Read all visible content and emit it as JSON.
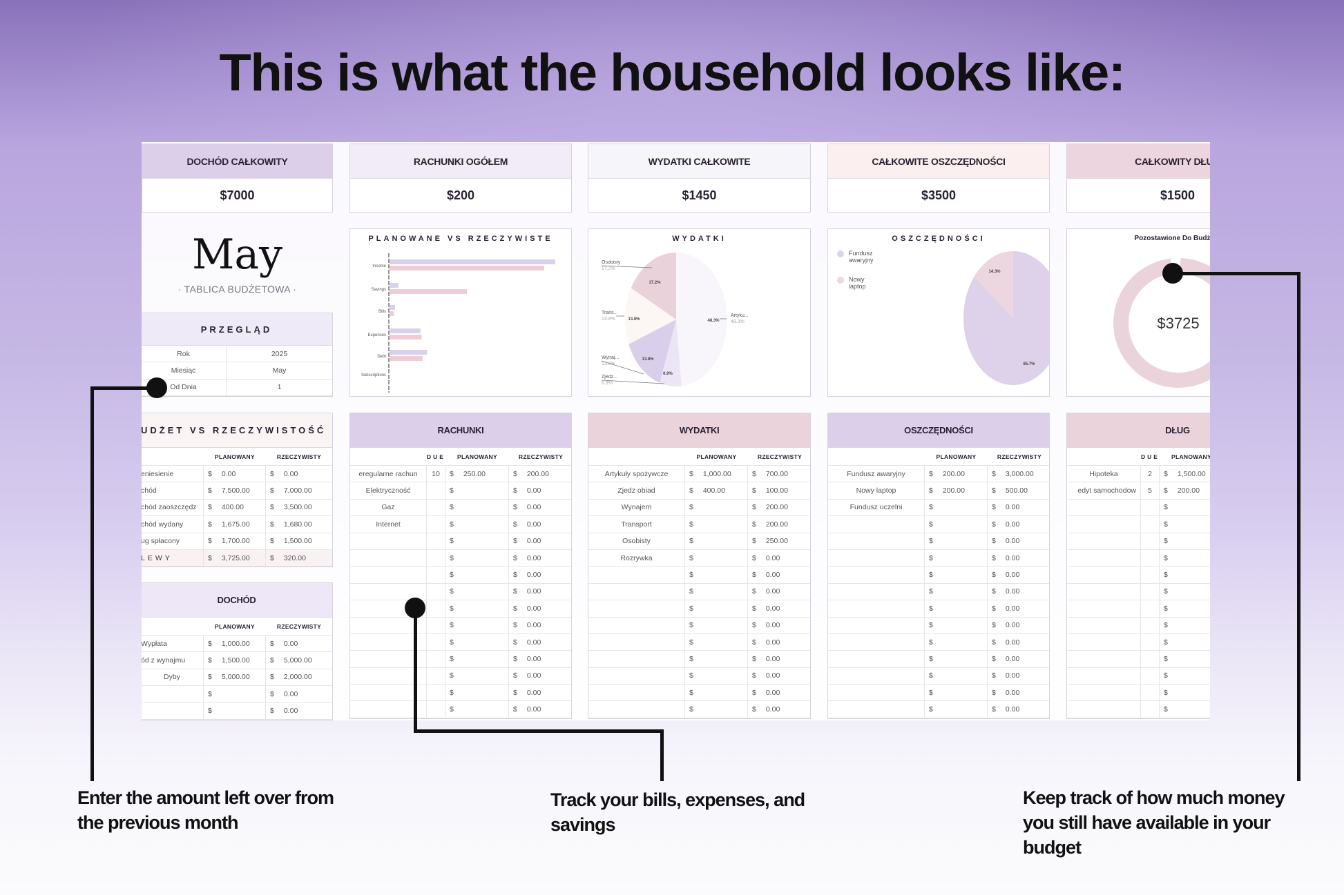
{
  "title": "This is what the household looks like:",
  "currency": "$",
  "cards": [
    {
      "label": "DOCHÓD CAŁKOWITY",
      "value": "$7000",
      "color": "#dccfea"
    },
    {
      "label": "RACHUNKI OGÓŁEM",
      "value": "$200",
      "color": "#f1ecf8"
    },
    {
      "label": "WYDATKI CAŁKOWITE",
      "value": "$1450",
      "color": "#f6f5fa"
    },
    {
      "label": "CAŁKOWITE OSZCZĘDNOŚCI",
      "value": "$3500",
      "color": "#fbeff0"
    },
    {
      "label": "CAŁKOWITY DŁUG",
      "value": "$1500",
      "color": "#ecd5de"
    }
  ],
  "month": {
    "name": "May",
    "subtitle": "· TABLICA BUDŻETOWA ·"
  },
  "overview": {
    "title": "PRZEGLĄD",
    "rows": [
      [
        "Rok",
        "2025"
      ],
      [
        "Miesiąc",
        "May"
      ],
      [
        "Od Dnia",
        "1"
      ]
    ]
  },
  "budget_vs_actual": {
    "title": "UDŻET VS RZECZYWISTOŚĆ",
    "columns": [
      "",
      "PLANOWANY",
      "RZECZYWISTY"
    ],
    "rows": [
      [
        "eniesienie",
        "0.00",
        "0.00"
      ],
      [
        "chód",
        "7,500.00",
        "7,000.00"
      ],
      [
        "chód zaoszczędz",
        "400.00",
        "3,500.00"
      ],
      [
        "chód wydany",
        "1,675.00",
        "1,680.00"
      ],
      [
        "ug spłacony",
        "1,700.00",
        "1,500.00"
      ],
      [
        "LEWY",
        "3,725.00",
        "320.00"
      ]
    ]
  },
  "income": {
    "title": "DOCHÓD",
    "columns": [
      "",
      "PLANOWANY",
      "RZECZYWISTY"
    ],
    "rows": [
      [
        "Wypłata",
        "1,000.00",
        "0.00"
      ],
      [
        "ód z wynajmu",
        "1,500.00",
        "5,000.00"
      ],
      [
        "Dyby",
        "5,000.00",
        "2,000.00"
      ],
      [
        "",
        "",
        "0.00"
      ],
      [
        "",
        "",
        "0.00"
      ]
    ]
  },
  "bills": {
    "title": "RACHUNKI",
    "columns": [
      "",
      "DUE",
      "PLANOWANY",
      "RZECZYWISTY"
    ],
    "rows": [
      [
        "eregularne rachun",
        "10",
        "250.00",
        "200.00"
      ],
      [
        "Elektryczność",
        "",
        "",
        "0.00"
      ],
      [
        "Gaz",
        "",
        "",
        "0.00"
      ],
      [
        "Internet",
        "",
        "",
        "0.00"
      ],
      [
        "",
        "",
        "",
        "0.00"
      ],
      [
        "",
        "",
        "",
        "0.00"
      ],
      [
        "",
        "",
        "",
        "0.00"
      ],
      [
        "",
        "",
        "",
        "0.00"
      ],
      [
        "",
        "",
        "",
        "0.00"
      ],
      [
        "",
        "",
        "",
        "0.00"
      ],
      [
        "",
        "",
        "",
        "0.00"
      ],
      [
        "",
        "",
        "",
        "0.00"
      ],
      [
        "",
        "",
        "",
        "0.00"
      ],
      [
        "",
        "",
        "",
        "0.00"
      ],
      [
        "",
        "",
        "",
        "0.00"
      ]
    ]
  },
  "expenses": {
    "title": "WYDATKI",
    "columns": [
      "",
      "PLANOWANY",
      "RZECZYWISTY"
    ],
    "rows": [
      [
        "Artykuły spożywcze",
        "1,000.00",
        "700.00"
      ],
      [
        "Zjedz obiad",
        "400.00",
        "100.00"
      ],
      [
        "Wynajem",
        "",
        "200.00"
      ],
      [
        "Transport",
        "",
        "200.00"
      ],
      [
        "Osobisty",
        "",
        "250.00"
      ],
      [
        "Rozrywka",
        "",
        "0.00"
      ],
      [
        "",
        "",
        "0.00"
      ],
      [
        "",
        "",
        "0.00"
      ],
      [
        "",
        "",
        "0.00"
      ],
      [
        "",
        "",
        "0.00"
      ],
      [
        "",
        "",
        "0.00"
      ],
      [
        "",
        "",
        "0.00"
      ],
      [
        "",
        "",
        "0.00"
      ],
      [
        "",
        "",
        "0.00"
      ],
      [
        "",
        "",
        "0.00"
      ]
    ]
  },
  "savings": {
    "title": "OSZCZĘDNOŚCI",
    "columns": [
      "",
      "PLANOWANY",
      "RZECZYWISTY"
    ],
    "rows": [
      [
        "Fundusz awaryjny",
        "200.00",
        "3,000.00"
      ],
      [
        "Nowy laptop",
        "200.00",
        "500.00"
      ],
      [
        "Fundusz uczelni",
        "",
        "0.00"
      ],
      [
        "",
        "",
        "0.00"
      ],
      [
        "",
        "",
        "0.00"
      ],
      [
        "",
        "",
        "0.00"
      ],
      [
        "",
        "",
        "0.00"
      ],
      [
        "",
        "",
        "0.00"
      ],
      [
        "",
        "",
        "0.00"
      ],
      [
        "",
        "",
        "0.00"
      ],
      [
        "",
        "",
        "0.00"
      ],
      [
        "",
        "",
        "0.00"
      ],
      [
        "",
        "",
        "0.00"
      ],
      [
        "",
        "",
        "0.00"
      ],
      [
        "",
        "",
        "0.00"
      ]
    ]
  },
  "debt": {
    "title": "DŁUG",
    "columns": [
      "",
      "DUE",
      "PLANOWANY"
    ],
    "rows": [
      [
        "edyt samochodow",
        "5",
        "200.00"
      ]
    ],
    "rows_all": [
      [
        "Hipoteka",
        "2",
        "1,500.00"
      ],
      [
        "edyt samochodow",
        "5",
        "200.00"
      ],
      [
        "",
        "",
        ""
      ],
      [
        "",
        "",
        ""
      ],
      [
        "",
        "",
        ""
      ],
      [
        "",
        "",
        ""
      ],
      [
        "",
        "",
        ""
      ],
      [
        "",
        "",
        ""
      ],
      [
        "",
        "",
        ""
      ],
      [
        "",
        "",
        ""
      ],
      [
        "",
        "",
        ""
      ],
      [
        "",
        "",
        ""
      ],
      [
        "",
        "",
        ""
      ],
      [
        "",
        "",
        ""
      ],
      [
        "",
        "",
        ""
      ]
    ]
  },
  "chart_data": [
    {
      "type": "bar",
      "orientation": "horizontal",
      "title": "PLANOWANE VS RZECZYWISTE",
      "categories": [
        "Income",
        "Savings",
        "Bills",
        "Expenses",
        "Debt",
        "Subscriptions"
      ],
      "series": [
        {
          "values": [
            7500,
            400,
            250,
            1400,
            1700,
            0
          ],
          "color": "#d9d0ec"
        },
        {
          "values": [
            7000,
            3500,
            200,
            1450,
            1500,
            0
          ],
          "color": "#efcdd6"
        }
      ],
      "xlim": [
        0,
        7600
      ]
    },
    {
      "type": "pie",
      "title": "WYDATKI",
      "slices": [
        {
          "label": "Artyku...",
          "value": 48.3,
          "pct": "48.3%",
          "color": "#f8f6fb"
        },
        {
          "label": "Zjedz...",
          "value": 6.9,
          "pct": "6.9%",
          "color": "#ebe5f6"
        },
        {
          "label": "Wynaj...",
          "value": 13.8,
          "pct": "13.8%",
          "color": "#dacfea"
        },
        {
          "label": "Trans...",
          "value": 13.8,
          "pct": "13.8%",
          "color": "#fcf7f5"
        },
        {
          "label": "Osobisty",
          "value": 17.2,
          "pct": "17.2%",
          "color": "#ead2da"
        }
      ]
    },
    {
      "type": "pie",
      "title": "OSZCZĘDNOŚCI",
      "legend": "top-left",
      "slices": [
        {
          "label": "Fundusz awaryjny",
          "value": 85.7,
          "pct": "85.7%",
          "color": "#ddd2ea"
        },
        {
          "label": "Nowy laptop",
          "value": 14.3,
          "pct": "14.3%",
          "color": "#ecd6df"
        }
      ]
    },
    {
      "type": "donut",
      "title": "Pozostawione Do Budżetu",
      "center_label": "$3725",
      "color": "#ebd3dc"
    }
  ],
  "callouts": {
    "left": [
      "Enter the amount left over from",
      "the previous month"
    ],
    "middle": [
      "Track your bills, expenses, and",
      "savings"
    ],
    "right": [
      "Keep track of how much money",
      "you still have available in your",
      "budget"
    ]
  }
}
